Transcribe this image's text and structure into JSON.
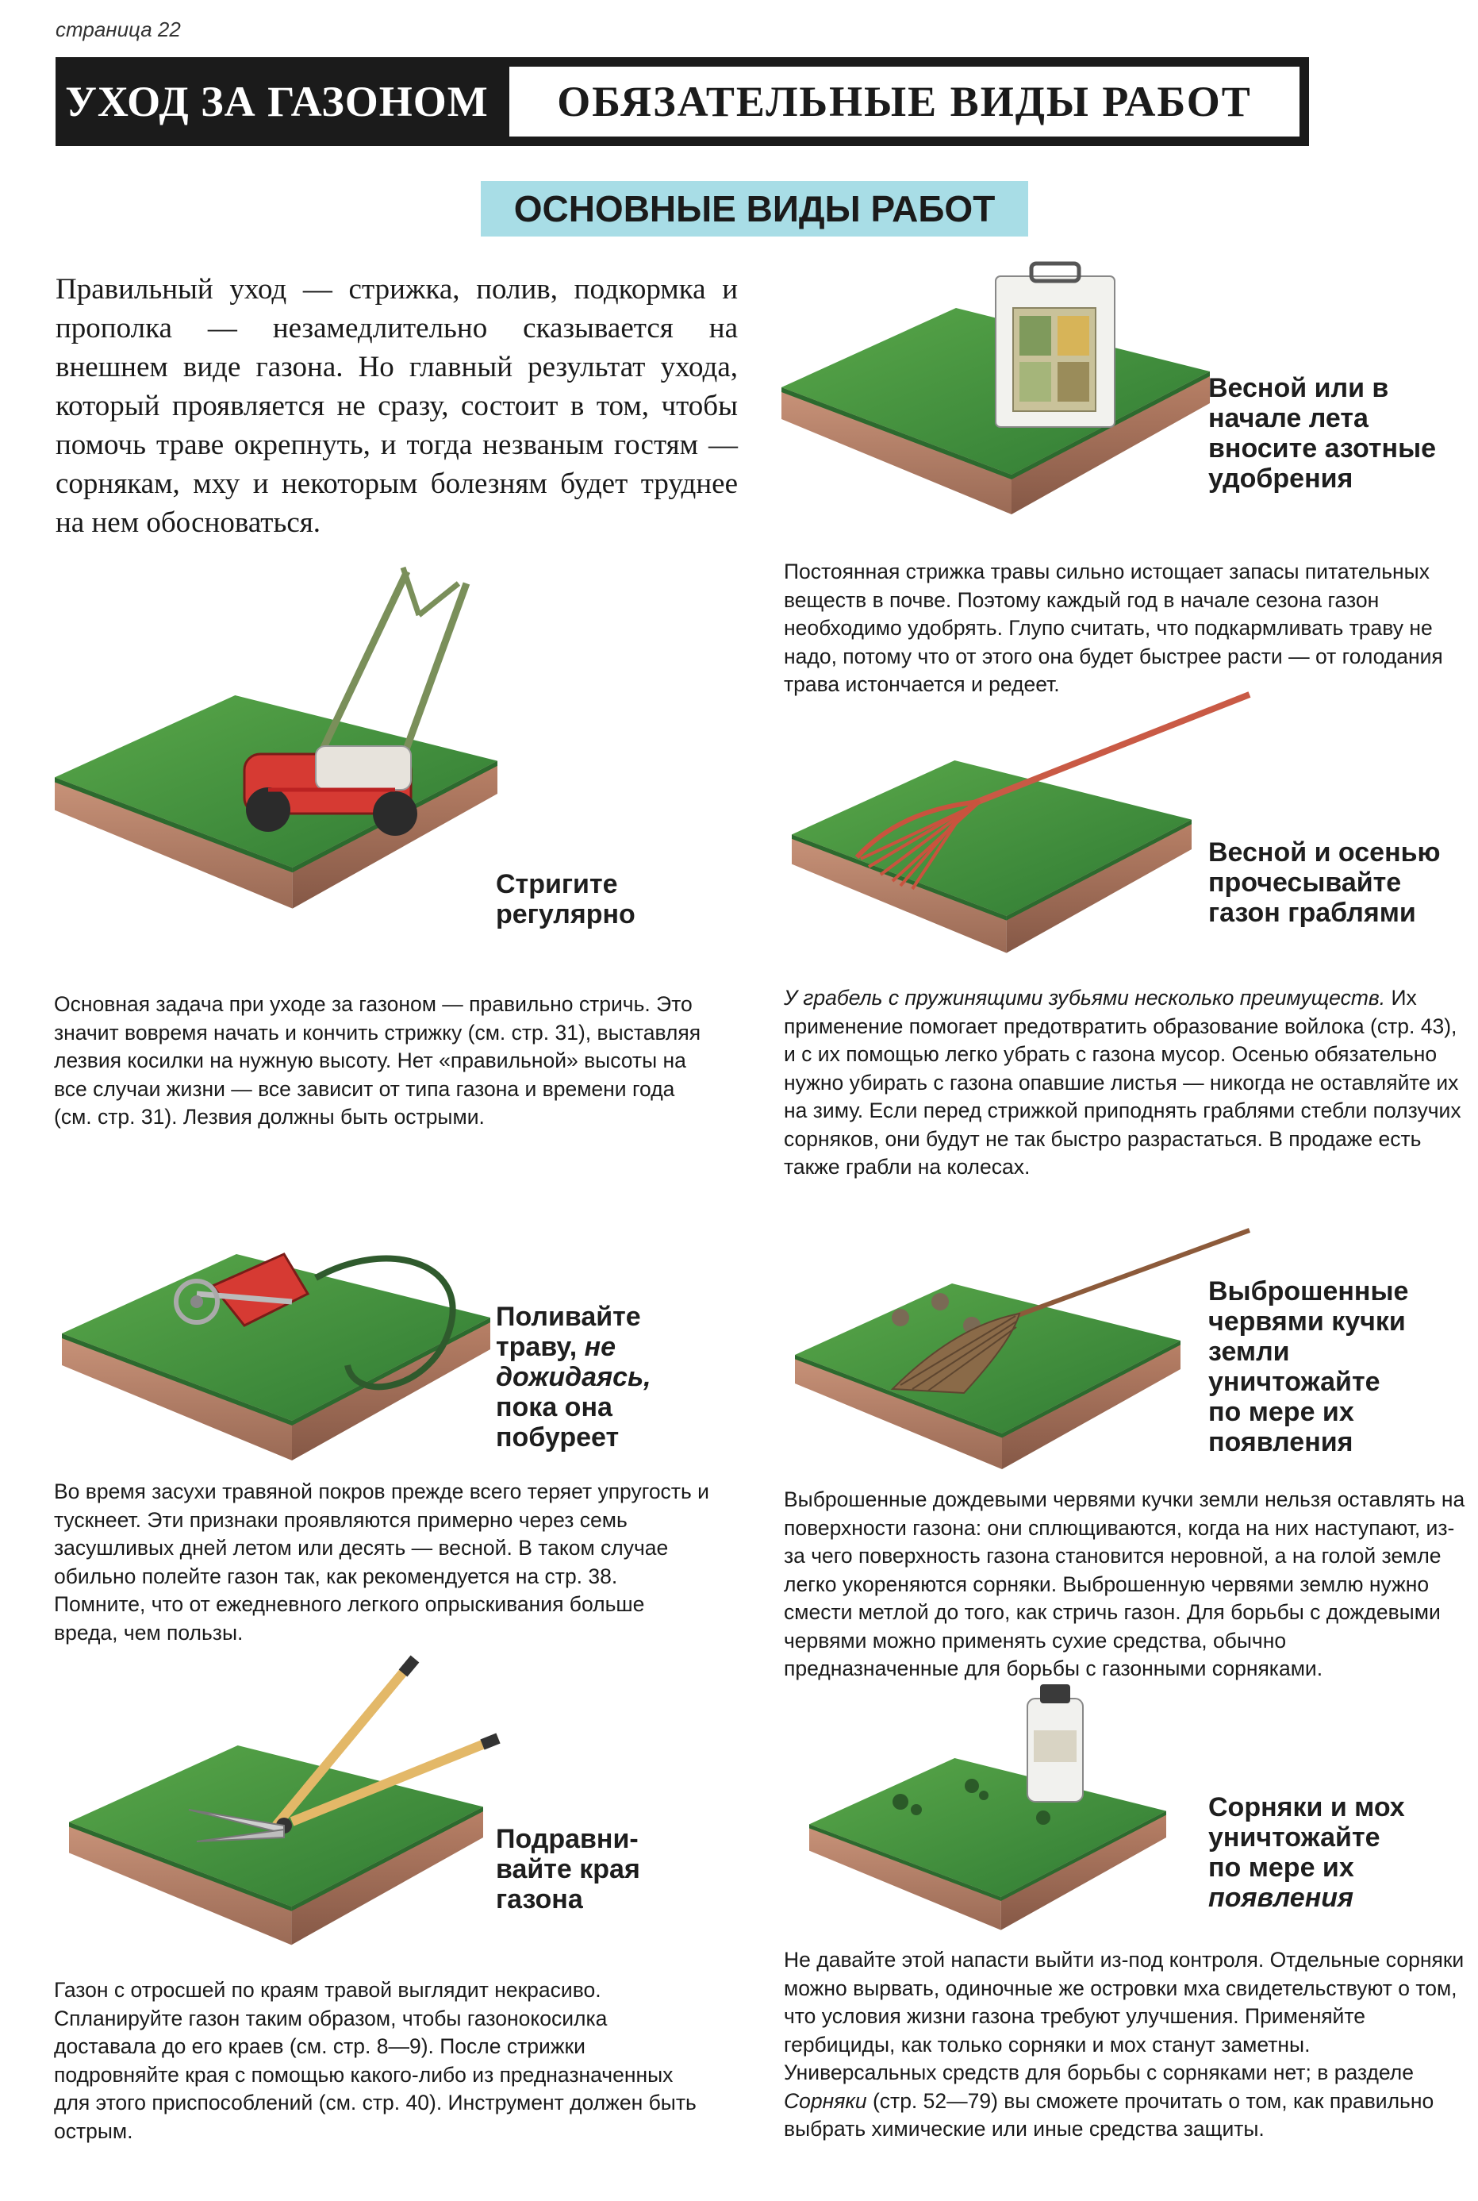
{
  "page": {
    "page_number": "страница 22",
    "header_left": "УХОД ЗА ГАЗОНОМ",
    "header_right": "ОБЯЗАТЕЛЬНЫЕ ВИДЫ РАБОТ",
    "section_title": "ОСНОВНЫЕ ВИДЫ РАБОТ",
    "intro": "Правильный уход — стрижка, полив, подкормка и прополка — незамедлительно сказывается на внешнем виде газона. Но главный результат ухода, который проявляется не сразу, состоит в том, чтобы помочь траве окрепнуть, и тогда незваным гостям — сорнякам, мху и некоторым болезням будет труднее на нем обосноваться."
  },
  "items": {
    "fertilize": {
      "caption": [
        "Весной или в",
        "начале лета",
        "вносите азотные",
        "удобрения"
      ],
      "body": "Постоянная стрижка травы сильно истощает запасы питательных веществ в почве. Поэтому каждый год в начале сезона газон необходимо удобрять. Глупо считать, что подкармливать траву не надо, потому что от этого она будет быстрее расти — от голодания трава истончается и редеет."
    },
    "mow": {
      "caption": [
        "Стригите",
        "регулярно"
      ],
      "body": "Основная задача при уходе за газоном — правильно стричь. Это значит вовремя начать и кончить стрижку (см. стр. 31), выставляя лезвия косилки на нужную высоту. Нет «правильной» высоты на все случаи жизни — все зависит от типа газона и времени года (см. стр. 31). Лезвия должны быть острыми."
    },
    "rake": {
      "caption": [
        "Весной и осенью",
        "прочесывайте",
        "газон граблями"
      ],
      "body_1": "У грабель с пружинящими зубьями несколько преимуществ.",
      "body_2": "Их применение помогает предотвратить образование войлока (стр. 43), и с их помощью легко убрать с газона мусор. Осенью обязательно нужно убирать с газона опавшие листья — никогда не оставляйте их на зиму. Если перед стрижкой приподнять граблями стебли ползучих сорняков, они будут не так быстро разрастаться. В продаже есть также грабли на колесах."
    },
    "water": {
      "caption_1": "Поливайте",
      "caption_2": "траву,",
      "caption_3": "не",
      "caption_4": "дожидаясь,",
      "caption_5": "пока она",
      "caption_6": "побуреет",
      "body": "Во время засухи травяной покров прежде всего теряет упругость и тускнеет. Эти признаки проявляются примерно через семь засушливых дней летом или десять — весной. В таком случае обильно полейте газон так, как рекомендуется на стр. 38. Помните, что от ежедневного легкого опрыскивания больше вреда, чем пользы."
    },
    "worms": {
      "caption": [
        "Выброшенные",
        "червями кучки",
        "земли",
        "уничтожайте",
        "по мере их",
        "появления"
      ],
      "body": "Выброшенные дождевыми червями кучки земли нельзя оставлять на поверхности газона: они сплющиваются, когда на них наступают, из-за чего поверхность газона становится неровной, а на голой земле легко укореняются сорняки. Выброшенную червями землю нужно смести метлой до того, как стричь газон. Для борьбы с дождевыми червями можно применять сухие средства, обычно предназначенные для борьбы с газонными сорняками."
    },
    "edges": {
      "caption": [
        "Подравни-",
        "вайте края",
        "газона"
      ],
      "body": "Газон с отросшей по краям травой выглядит некрасиво. Спланируйте газон таким образом, чтобы газонокосилка доставала до его краев (см. стр. 8—9). После стрижки подровняйте края с помощью какого-либо из предназначенных для этого приспособлений (см. стр. 40). Инструмент должен быть острым."
    },
    "weeds": {
      "caption": [
        "Сорняки и мох",
        "уничтожайте",
        "по мере их",
        "появления"
      ],
      "body_1": "Не давайте этой напасти выйти из-под контроля. Отдельные сорняки можно вырвать, одиночные же островки мха свидетельствуют о том, что условия жизни газона требуют улучшения. Применяйте гербициды, как только сорняки и мох станут заметны. Универсальных средств для борьбы с сорняками нет; в разделе",
      "body_link": "Сорняки",
      "body_2": "(стр. 52—79) вы сможете прочитать о том, как правильно выбрать химические или иные средства защиты."
    }
  },
  "colors": {
    "header_band": "#1b1b1b",
    "section_bg": "#a8dde6",
    "grass": "#3f8f3a",
    "soil": "#b9826a"
  },
  "icons": {
    "fertilize": "fertilizer-bag-icon",
    "mow": "lawn-mower-icon",
    "rake": "rake-icon",
    "water": "sprinkler-hose-icon",
    "worms": "broom-worm-casts-icon",
    "edges": "edging-shears-icon",
    "weeds": "herbicide-bottle-icon"
  }
}
